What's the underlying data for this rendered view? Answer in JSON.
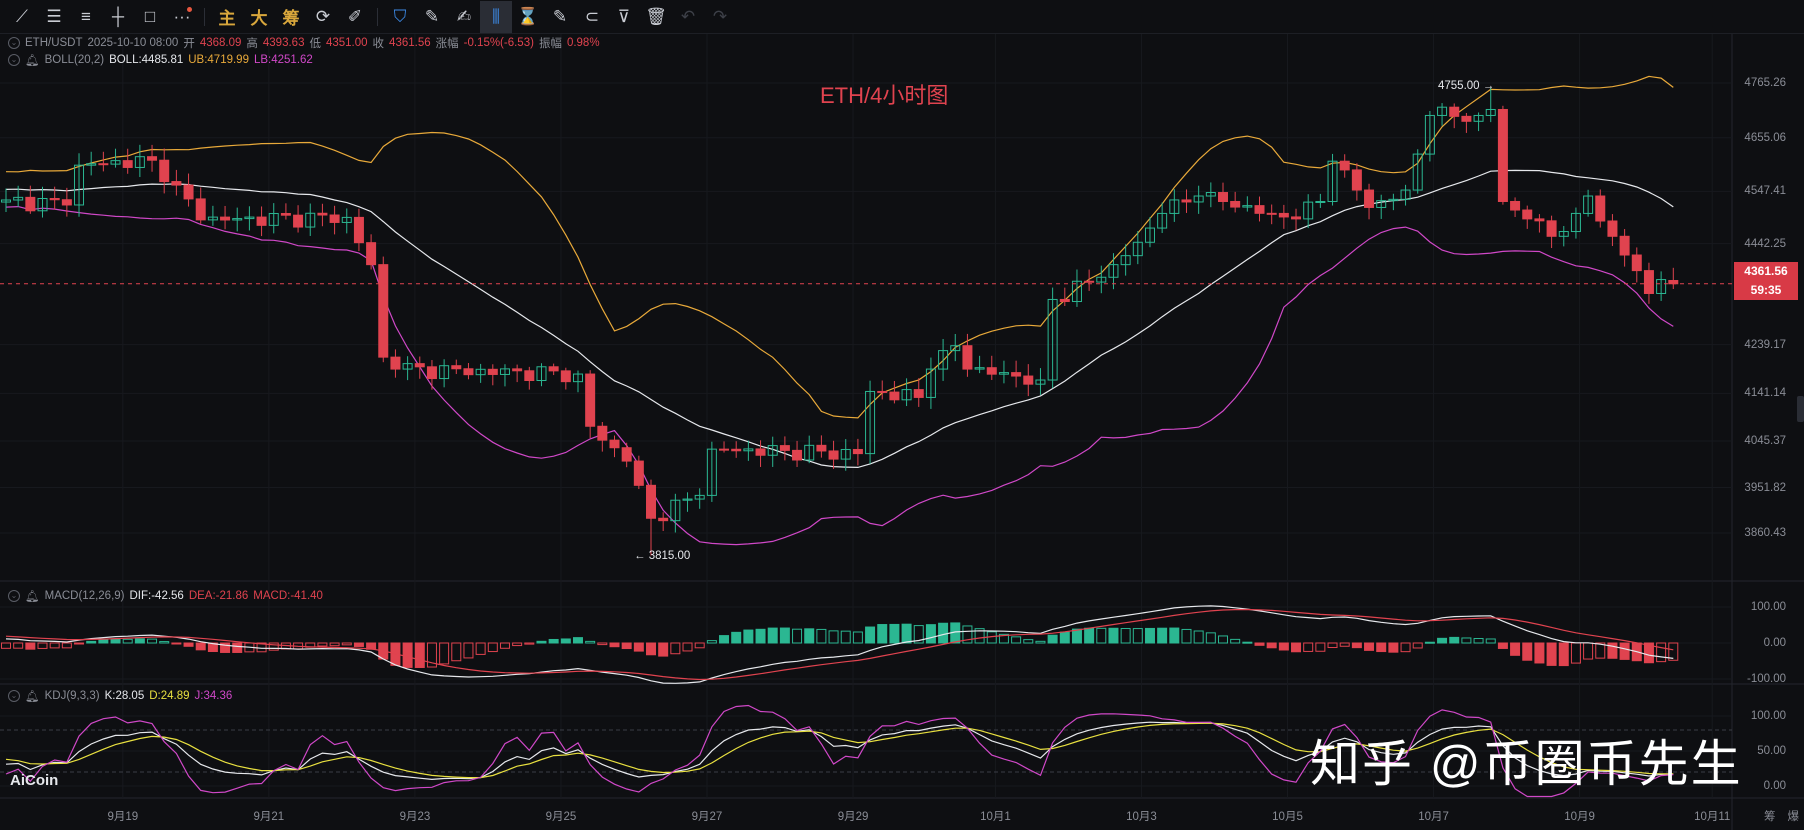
{
  "toolbar": {
    "tools": [
      {
        "name": "line-tool-icon",
        "glyph": "⟋"
      },
      {
        "name": "parallel-lines-icon",
        "glyph": "☰"
      },
      {
        "name": "fib-lines-icon",
        "glyph": "≡"
      },
      {
        "name": "horizontal-line-icon",
        "glyph": "┼"
      },
      {
        "name": "rectangle-icon",
        "glyph": "□"
      },
      {
        "name": "more-icon",
        "glyph": "···"
      }
    ],
    "indicator_buttons": [
      "主",
      "大",
      "筹"
    ],
    "right_tools": [
      {
        "name": "bookmark-icon",
        "glyph": "⛉"
      },
      {
        "name": "ruler-icon",
        "glyph": "✎"
      },
      {
        "name": "draw-icon",
        "glyph": "✍"
      },
      {
        "name": "candle-icon",
        "glyph": "⫼"
      },
      {
        "name": "timer-icon",
        "glyph": "⌛"
      },
      {
        "name": "note-icon",
        "glyph": "✎"
      },
      {
        "name": "magnet-icon",
        "glyph": "⊂"
      },
      {
        "name": "filter-icon",
        "glyph": "⊽"
      },
      {
        "name": "trash-icon",
        "glyph": "🗑"
      },
      {
        "name": "undo-icon",
        "glyph": "↶"
      },
      {
        "name": "redo-icon",
        "glyph": "↷"
      }
    ]
  },
  "info": {
    "symbol": "ETH/USDT",
    "time": "2025-10-10 08:00",
    "open_label": "开",
    "open": "4368.09",
    "high_label": "高",
    "high": "4393.63",
    "low_label": "低",
    "low": "4351.00",
    "close_label": "收",
    "close": "4361.56",
    "change_label": "涨幅",
    "change": "-0.15%(-6.53)",
    "amp_label": "振幅",
    "amp": "0.98%"
  },
  "boll": {
    "label": "BOLL(20,2)",
    "mid": "BOLL:4485.81",
    "ub": "UB:4719.99",
    "lb": "LB:4251.62"
  },
  "macd": {
    "label": "MACD(12,26,9)",
    "dif": "DIF:-42.56",
    "dea": "DEA:-21.86",
    "macd": "MACD:-41.40"
  },
  "kdj": {
    "label": "KDJ(9,3,3)",
    "k": "K:28.05",
    "d": "D:24.89",
    "j": "J:34.36"
  },
  "chart_title": "ETH/4小时图",
  "watermark": "知乎 @币圈币先生",
  "logo": "AiCoin",
  "current_price": "4361.56",
  "countdown": "59:35",
  "annotations": {
    "high": "4755.00 →",
    "low": "← 3815.00"
  },
  "price_axis": [
    "4765.26",
    "4655.06",
    "4547.41",
    "4442.25",
    "4239.17",
    "4141.14",
    "4045.37",
    "3951.82",
    "3860.43"
  ],
  "macd_axis": [
    "100.00",
    "0.00",
    "-100.00"
  ],
  "kdj_axis": [
    "100.00",
    "50.00",
    "0.00"
  ],
  "footer_buttons": [
    "筹",
    "爆"
  ],
  "colors": {
    "up": "#2bb792",
    "down": "#e0434f",
    "mid": "#e6e8ec",
    "ub": "#e8a93a",
    "lb": "#d048c8",
    "kdj_j": "#d048c8",
    "kdj_d": "#e8e040",
    "kdj_k": "#e6e8ec",
    "dea": "#e0434f",
    "dif": "#e6e8ec"
  },
  "chart_data": {
    "type": "candlestick",
    "interval": "4h",
    "price_range": [
      3860.43,
      4765.26
    ],
    "macd_range": [
      -100,
      100
    ],
    "kdj_range": [
      0,
      100
    ],
    "extremes": {
      "high": 4755.0,
      "high_index": 122,
      "low": 3815.0,
      "low_index": 53
    },
    "last_candle": {
      "open": 4368.09,
      "high": 4393.63,
      "low": 4351.0,
      "close": 4361.56
    },
    "close_path": [
      [
        -30,
        4450
      ],
      [
        -10,
        4580
      ],
      [
        0,
        4530
      ],
      [
        5,
        4520
      ],
      [
        6,
        4600
      ],
      [
        12,
        4610
      ],
      [
        14,
        4560
      ],
      [
        16,
        4490
      ],
      [
        28,
        4495
      ],
      [
        30,
        4400
      ],
      [
        31,
        4214
      ],
      [
        32,
        4190
      ],
      [
        47,
        4180
      ],
      [
        48,
        4075
      ],
      [
        51,
        4005
      ],
      [
        53,
        3890
      ],
      [
        57,
        3936
      ],
      [
        58,
        4029
      ],
      [
        70,
        4020
      ],
      [
        71,
        4145
      ],
      [
        75,
        4133
      ],
      [
        76,
        4190
      ],
      [
        78,
        4237
      ],
      [
        79,
        4190
      ],
      [
        85,
        4168
      ],
      [
        86,
        4330
      ],
      [
        89,
        4365
      ],
      [
        91,
        4400
      ],
      [
        93,
        4445
      ],
      [
        95,
        4503
      ],
      [
        98,
        4538
      ],
      [
        100,
        4527
      ],
      [
        104,
        4503
      ],
      [
        106,
        4492
      ],
      [
        108,
        4527
      ],
      [
        109,
        4608
      ],
      [
        111,
        4550
      ],
      [
        112,
        4515
      ],
      [
        115,
        4550
      ],
      [
        117,
        4700
      ],
      [
        121,
        4700
      ],
      [
        122,
        4712
      ],
      [
        123,
        4527
      ],
      [
        125,
        4492
      ],
      [
        127,
        4457
      ],
      [
        129,
        4503
      ],
      [
        130,
        4538
      ],
      [
        132,
        4457
      ],
      [
        134,
        4388
      ],
      [
        135,
        4342
      ],
      [
        136,
        4370
      ],
      [
        137,
        4361.56
      ]
    ],
    "date_ticks": [
      {
        "label": "9月19",
        "at": 9.6
      },
      {
        "label": "9月21",
        "at": 21.6
      },
      {
        "label": "9月23",
        "at": 33.6
      },
      {
        "label": "9月25",
        "at": 45.6
      },
      {
        "label": "9月27",
        "at": 57.6
      },
      {
        "label": "9月29",
        "at": 69.6
      },
      {
        "label": "10月1",
        "at": 81.3
      },
      {
        "label": "10月3",
        "at": 93.3
      },
      {
        "label": "10月5",
        "at": 105.3
      },
      {
        "label": "10月7",
        "at": 117.3
      },
      {
        "label": "10月9",
        "at": 129.3
      },
      {
        "label": "10月11",
        "at": 140.2
      }
    ]
  }
}
